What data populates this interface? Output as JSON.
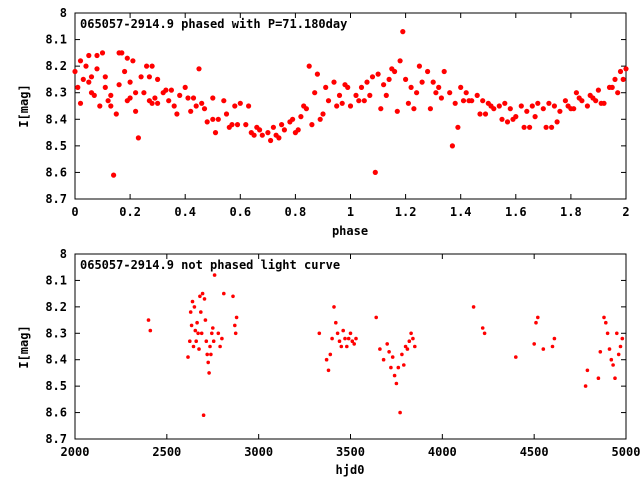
{
  "chart_data": [
    {
      "type": "scatter",
      "title": "065057-2914.9 phased with P=71.180day",
      "xlabel": "phase",
      "ylabel": "I[mag]",
      "xlim": [
        0,
        2
      ],
      "ylim": [
        8.7,
        8
      ],
      "y_inverted": true,
      "xticks": [
        "0",
        "0.2",
        "0.4",
        "0.6",
        "0.8",
        "1",
        "1.2",
        "1.4",
        "1.6",
        "1.8",
        "2"
      ],
      "yticks": [
        "8",
        "8.1",
        "8.2",
        "8.3",
        "8.4",
        "8.5",
        "8.6",
        "8.7"
      ],
      "grid": false,
      "color": "#ff0000",
      "series": [
        {
          "x": [
            0.0,
            0.01,
            0.02,
            0.03,
            0.04,
            0.05,
            0.06,
            0.07,
            0.08,
            0.09,
            0.1,
            0.11,
            0.12,
            0.13,
            0.14,
            0.15,
            0.16,
            0.17,
            0.18,
            0.19,
            0.2,
            0.21,
            0.22,
            0.23,
            0.24,
            0.25,
            0.26,
            0.27,
            0.28,
            0.29,
            0.3,
            0.32,
            0.34,
            0.36,
            0.38,
            0.4,
            0.42,
            0.44,
            0.45,
            0.46,
            0.48,
            0.5,
            0.52,
            0.54,
            0.56,
            0.58,
            0.6,
            0.62,
            0.64,
            0.66,
            0.68,
            0.7,
            0.72,
            0.74,
            0.76,
            0.78,
            0.8,
            0.82,
            0.84,
            0.85,
            0.86,
            0.88,
            0.9,
            0.92,
            0.94,
            0.96,
            0.98,
            1.0,
            1.02,
            1.04,
            1.06,
            1.08,
            1.09,
            1.1,
            1.12,
            1.14,
            1.16,
            1.18,
            1.19,
            1.2,
            1.22,
            1.24,
            1.26,
            1.28,
            1.3,
            1.32,
            1.34,
            1.36,
            1.37,
            1.38,
            1.4,
            1.42,
            1.44,
            1.46,
            1.48,
            1.5,
            1.52,
            1.54,
            1.56,
            1.58,
            1.6,
            1.62,
            1.64,
            1.66,
            1.68,
            1.7,
            1.72,
            1.74,
            1.76,
            1.78,
            1.8,
            1.82,
            1.84,
            1.86,
            1.88,
            1.9,
            1.92,
            1.94,
            1.96,
            1.98,
            2.0,
            0.02,
            0.05,
            0.08,
            0.11,
            0.16,
            0.19,
            0.22,
            0.27,
            0.3,
            0.33,
            0.37,
            0.41,
            0.47,
            0.51,
            0.55,
            0.59,
            0.63,
            0.67,
            0.71,
            0.75,
            0.79,
            0.83,
            0.87,
            0.91,
            0.95,
            0.99,
            1.03,
            1.07,
            1.11,
            1.15,
            1.21,
            1.25,
            1.29,
            1.33,
            1.39,
            1.43,
            1.47,
            1.51,
            1.55,
            1.59,
            1.63,
            1.67,
            1.71,
            1.75,
            1.79,
            1.83,
            1.87,
            1.91,
            1.95,
            1.99,
            0.06,
            0.13,
            0.2,
            0.28,
            0.35,
            0.43,
            0.5,
            0.57,
            0.65,
            0.73,
            0.81,
            0.89,
            0.97,
            1.05,
            1.13,
            1.17,
            1.23,
            1.31,
            1.41,
            1.49,
            1.57,
            1.65,
            1.73,
            1.81,
            1.89,
            1.97
          ],
          "y": [
            8.22,
            8.28,
            8.34,
            8.25,
            8.2,
            8.16,
            8.24,
            8.31,
            8.16,
            8.35,
            8.15,
            8.28,
            8.33,
            8.31,
            8.61,
            8.38,
            8.27,
            8.15,
            8.22,
            8.33,
            8.26,
            8.18,
            8.37,
            8.47,
            8.24,
            8.3,
            8.2,
            8.33,
            8.2,
            8.32,
            8.25,
            8.3,
            8.33,
            8.35,
            8.31,
            8.28,
            8.37,
            8.35,
            8.21,
            8.34,
            8.41,
            8.32,
            8.4,
            8.33,
            8.43,
            8.35,
            8.34,
            8.42,
            8.45,
            8.43,
            8.46,
            8.45,
            8.43,
            8.47,
            8.44,
            8.41,
            8.45,
            8.39,
            8.36,
            8.2,
            8.42,
            8.23,
            8.38,
            8.33,
            8.26,
            8.31,
            8.27,
            8.35,
            8.31,
            8.28,
            8.26,
            8.24,
            8.6,
            8.23,
            8.27,
            8.25,
            8.22,
            8.18,
            8.07,
            8.25,
            8.28,
            8.3,
            8.26,
            8.22,
            8.26,
            8.28,
            8.22,
            8.3,
            8.5,
            8.34,
            8.28,
            8.3,
            8.33,
            8.31,
            8.33,
            8.34,
            8.36,
            8.35,
            8.34,
            8.36,
            8.39,
            8.35,
            8.37,
            8.35,
            8.34,
            8.36,
            8.34,
            8.35,
            8.37,
            8.33,
            8.36,
            8.3,
            8.33,
            8.35,
            8.32,
            8.29,
            8.34,
            8.28,
            8.25,
            8.22,
            8.21,
            8.18,
            8.26,
            8.21,
            8.24,
            8.15,
            8.17,
            8.3,
            8.24,
            8.34,
            8.29,
            8.38,
            8.32,
            8.36,
            8.45,
            8.38,
            8.42,
            8.35,
            8.44,
            8.48,
            8.42,
            8.4,
            8.35,
            8.3,
            8.28,
            8.35,
            8.28,
            8.33,
            8.31,
            8.36,
            8.21,
            8.34,
            8.2,
            8.36,
            8.32,
            8.43,
            8.33,
            8.38,
            8.35,
            8.4,
            8.4,
            8.43,
            8.39,
            8.43,
            8.41,
            8.35,
            8.32,
            8.31,
            8.34,
            8.28,
            8.25,
            8.3,
            8.35,
            8.32,
            8.34,
            8.29,
            8.32,
            8.4,
            8.42,
            8.46,
            8.46,
            8.44,
            8.4,
            8.34,
            8.33,
            8.31,
            8.37,
            8.36,
            8.3,
            8.33,
            8.38,
            8.41,
            8.43,
            8.43,
            8.36,
            8.33,
            8.3
          ]
        }
      ]
    },
    {
      "type": "scatter",
      "title": "065057-2914.9 not phased light curve",
      "xlabel": "hjd0",
      "ylabel": "I[mag]",
      "xlim": [
        2000,
        5000
      ],
      "ylim": [
        8.7,
        8
      ],
      "y_inverted": true,
      "xticks": [
        "2000",
        "2500",
        "3000",
        "3500",
        "4000",
        "4500",
        "5000"
      ],
      "yticks": [
        "8",
        "8.1",
        "8.2",
        "8.3",
        "8.4",
        "8.5",
        "8.6",
        "8.7"
      ],
      "grid": false,
      "color": "#ff0000",
      "series": [
        {
          "x": [
            2400,
            2410,
            2615,
            2625,
            2630,
            2635,
            2640,
            2645,
            2650,
            2655,
            2660,
            2665,
            2670,
            2675,
            2680,
            2685,
            2690,
            2695,
            2700,
            2705,
            2710,
            2715,
            2720,
            2725,
            2730,
            2735,
            2740,
            2745,
            2750,
            2755,
            2760,
            2780,
            2790,
            2800,
            2810,
            2860,
            2870,
            2875,
            2880,
            3330,
            3370,
            3380,
            3390,
            3400,
            3410,
            3420,
            3430,
            3440,
            3450,
            3460,
            3470,
            3480,
            3490,
            3500,
            3510,
            3520,
            3530,
            3640,
            3660,
            3680,
            3700,
            3710,
            3720,
            3730,
            3740,
            3750,
            3760,
            3770,
            3780,
            3790,
            3800,
            3810,
            3820,
            3830,
            3840,
            3850,
            4170,
            4220,
            4230,
            4400,
            4500,
            4510,
            4520,
            4550,
            4600,
            4610,
            4780,
            4790,
            4850,
            4860,
            4880,
            4890,
            4900,
            4910,
            4920,
            4930,
            4940,
            4950,
            4960,
            4970,
            4980
          ],
          "y": [
            8.25,
            8.29,
            8.39,
            8.33,
            8.22,
            8.27,
            8.18,
            8.35,
            8.2,
            8.29,
            8.33,
            8.26,
            8.3,
            8.36,
            8.16,
            8.22,
            8.3,
            8.15,
            8.61,
            8.17,
            8.25,
            8.33,
            8.38,
            8.41,
            8.45,
            8.35,
            8.38,
            8.3,
            8.28,
            8.33,
            8.08,
            8.3,
            8.35,
            8.32,
            8.15,
            8.16,
            8.27,
            8.3,
            8.24,
            8.3,
            8.4,
            8.44,
            8.38,
            8.32,
            8.2,
            8.26,
            8.3,
            8.33,
            8.35,
            8.29,
            8.32,
            8.35,
            8.32,
            8.3,
            8.33,
            8.34,
            8.32,
            8.24,
            8.36,
            8.4,
            8.34,
            8.37,
            8.43,
            8.39,
            8.46,
            8.49,
            8.43,
            8.6,
            8.38,
            8.42,
            8.35,
            8.36,
            8.33,
            8.3,
            8.32,
            8.35,
            8.2,
            8.28,
            8.3,
            8.39,
            8.34,
            8.26,
            8.24,
            8.36,
            8.35,
            8.32,
            8.5,
            8.44,
            8.47,
            8.37,
            8.24,
            8.26,
            8.3,
            8.36,
            8.4,
            8.42,
            8.47,
            8.3,
            8.38,
            8.35,
            8.32
          ]
        }
      ]
    }
  ]
}
